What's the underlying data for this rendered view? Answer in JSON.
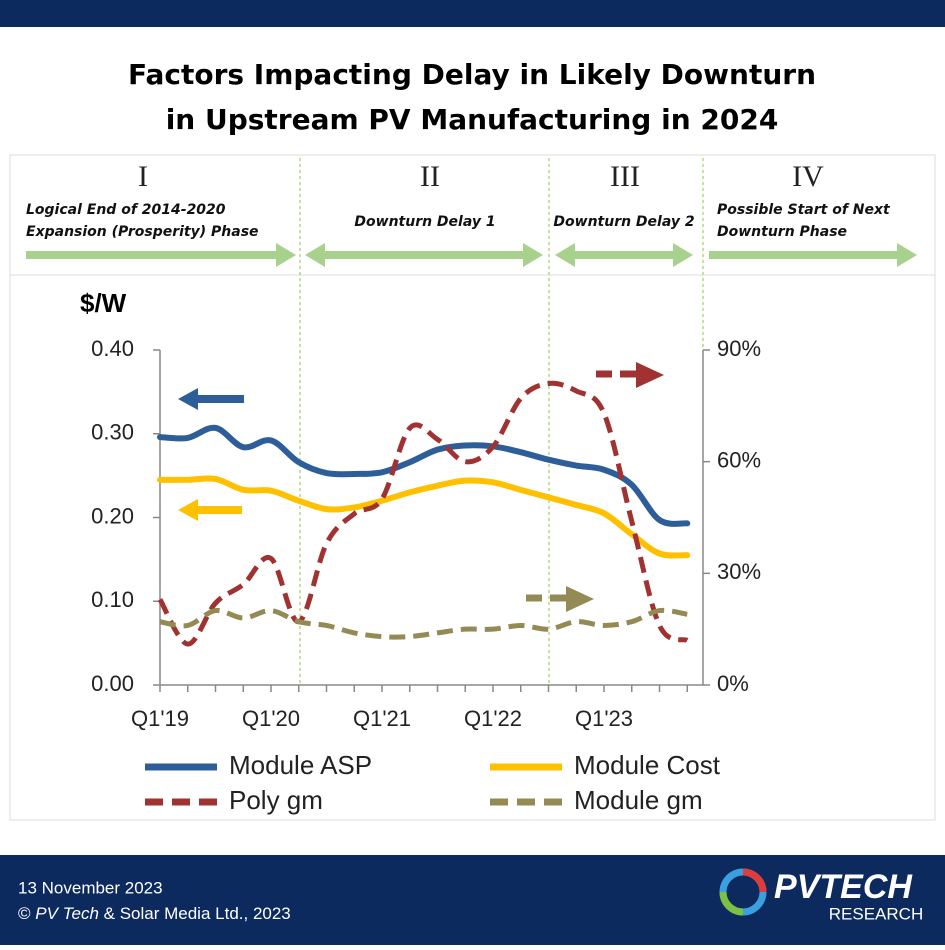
{
  "chart_data": {
    "type": "line",
    "title_lines": [
      "Factors Impacting Delay in Likely Downturn",
      "in Upstream PV Manufacturing  in 2024"
    ],
    "y_unit": "$/W",
    "phases": [
      {
        "numeral": "I",
        "lines": [
          "Logical End of 2014-2020",
          "Expansion (Prosperity) Phase"
        ]
      },
      {
        "numeral": "II",
        "lines": [
          "Downturn Delay 1"
        ]
      },
      {
        "numeral": "III",
        "lines": [
          "Downturn Delay 2"
        ]
      },
      {
        "numeral": "IV",
        "lines": [
          "Possible Start of Next",
          "Downturn Phase"
        ]
      }
    ],
    "categories": [
      "Q1'19",
      null,
      null,
      null,
      "Q1'20",
      null,
      null,
      null,
      "Q1'21",
      null,
      null,
      null,
      "Q1'22",
      null,
      null,
      null,
      "Q1'23",
      null,
      null,
      null
    ],
    "series": [
      {
        "name": "Module ASP",
        "color": "#2e5e99",
        "dash": false,
        "values": [
          0.296,
          0.295,
          0.307,
          0.284,
          0.292,
          0.266,
          0.253,
          0.252,
          0.254,
          0.266,
          0.281,
          0.286,
          0.285,
          0.278,
          0.269,
          0.262,
          0.257,
          0.239,
          0.197,
          0.193
        ]
      },
      {
        "name": "Module Cost",
        "color": "#ffc000",
        "dash": false,
        "values": [
          0.245,
          0.245,
          0.246,
          0.233,
          0.232,
          0.22,
          0.21,
          0.212,
          0.22,
          0.23,
          0.238,
          0.244,
          0.242,
          0.233,
          0.224,
          0.215,
          0.205,
          0.18,
          0.157,
          0.155
        ]
      },
      {
        "name": "Poly gm",
        "color": "#a03232",
        "dash": true,
        "axis": "y2",
        "values": [
          23,
          11,
          22,
          27,
          34,
          17,
          38,
          46,
          50,
          69,
          66,
          60,
          64,
          77,
          81,
          79,
          73,
          44,
          16,
          12
        ]
      },
      {
        "name": "Module gm",
        "color": "#948a54",
        "dash": true,
        "axis": "y2",
        "values": [
          17,
          16,
          20,
          18,
          20,
          17,
          16,
          14,
          13,
          13,
          14,
          15,
          15,
          16,
          15,
          17,
          16,
          17,
          20,
          19
        ]
      }
    ],
    "ylim": [
      0,
      0.4
    ],
    "yticks": [
      {
        "value": 0,
        "label": "0.00"
      },
      {
        "value": 0.1,
        "label": "0.10"
      },
      {
        "value": 0.2,
        "label": "0.20"
      },
      {
        "value": 0.3,
        "label": "0.30"
      },
      {
        "value": 0.4,
        "label": "0.40"
      }
    ],
    "y2lim": [
      0,
      90
    ],
    "y2ticks": [
      {
        "value": 0,
        "label": "0%"
      },
      {
        "value": 30,
        "label": "30%"
      },
      {
        "value": 60,
        "label": "60%"
      },
      {
        "value": 90,
        "label": "90%"
      }
    ]
  },
  "footer": {
    "date": "13 November  2023",
    "copyright_symbol": "©",
    "copyright_brand": "PV Tech",
    "copyright_rest": "& Solar Media Ltd., 2023"
  },
  "logo": {
    "brand": "PVTECH",
    "sub": "RESEARCH"
  }
}
